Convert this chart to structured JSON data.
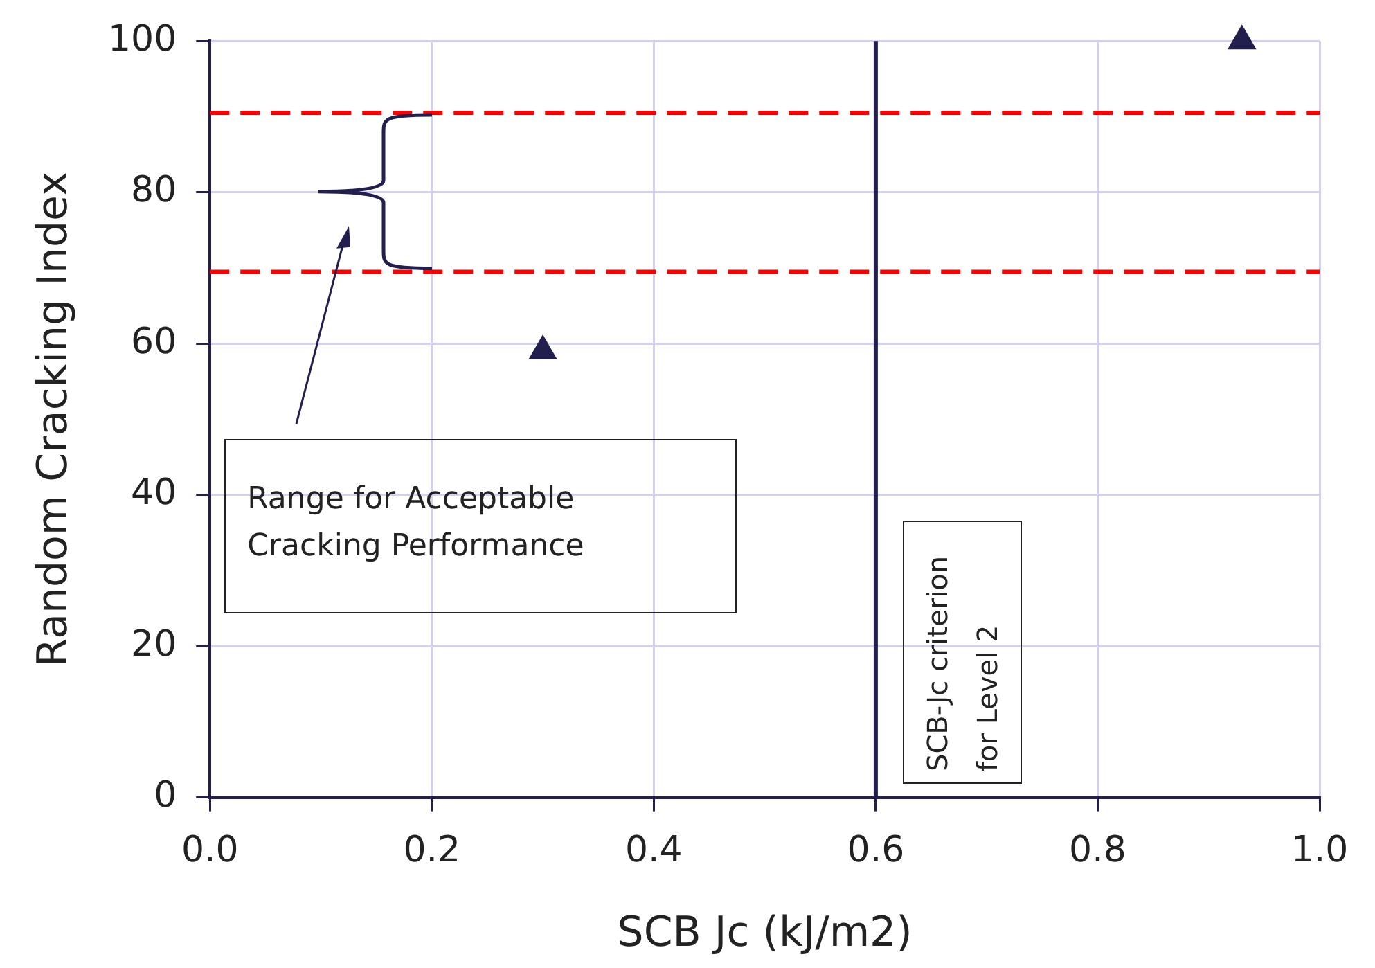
{
  "chart_data": {
    "type": "scatter",
    "xlabel": "SCB Jc (kJ/m2)",
    "ylabel": "Random Cracking Index",
    "x": [
      0.3,
      0.93
    ],
    "series": [
      {
        "color": "#221f4f",
        "values": [
          59,
          100
        ]
      }
    ],
    "marker": "triangle",
    "xlim": [
      0,
      1
    ],
    "xticks": [
      {
        "value": 0,
        "label": "0.0"
      },
      0.2,
      0.4,
      0.6,
      0.8,
      {
        "value": 1,
        "label": "1.0"
      }
    ],
    "ylim": [
      0,
      100
    ],
    "yticks": [
      0,
      20,
      40,
      60,
      80,
      100
    ],
    "grid": true,
    "legend": false,
    "ref_lines": [
      {
        "axis": "y",
        "value": 90.5,
        "color": "#ff0000",
        "line_style": "dashed"
      },
      {
        "axis": "y",
        "value": 69.5,
        "color": "#ff0000",
        "line_style": "dashed"
      },
      {
        "axis": "x",
        "value": 0.6,
        "color": "#221f4f",
        "line_style": "solid",
        "label": "SCB-Jc criterion for Level 2"
      }
    ],
    "annotations": [
      "Range for Acceptable Cracking Performance"
    ]
  }
}
